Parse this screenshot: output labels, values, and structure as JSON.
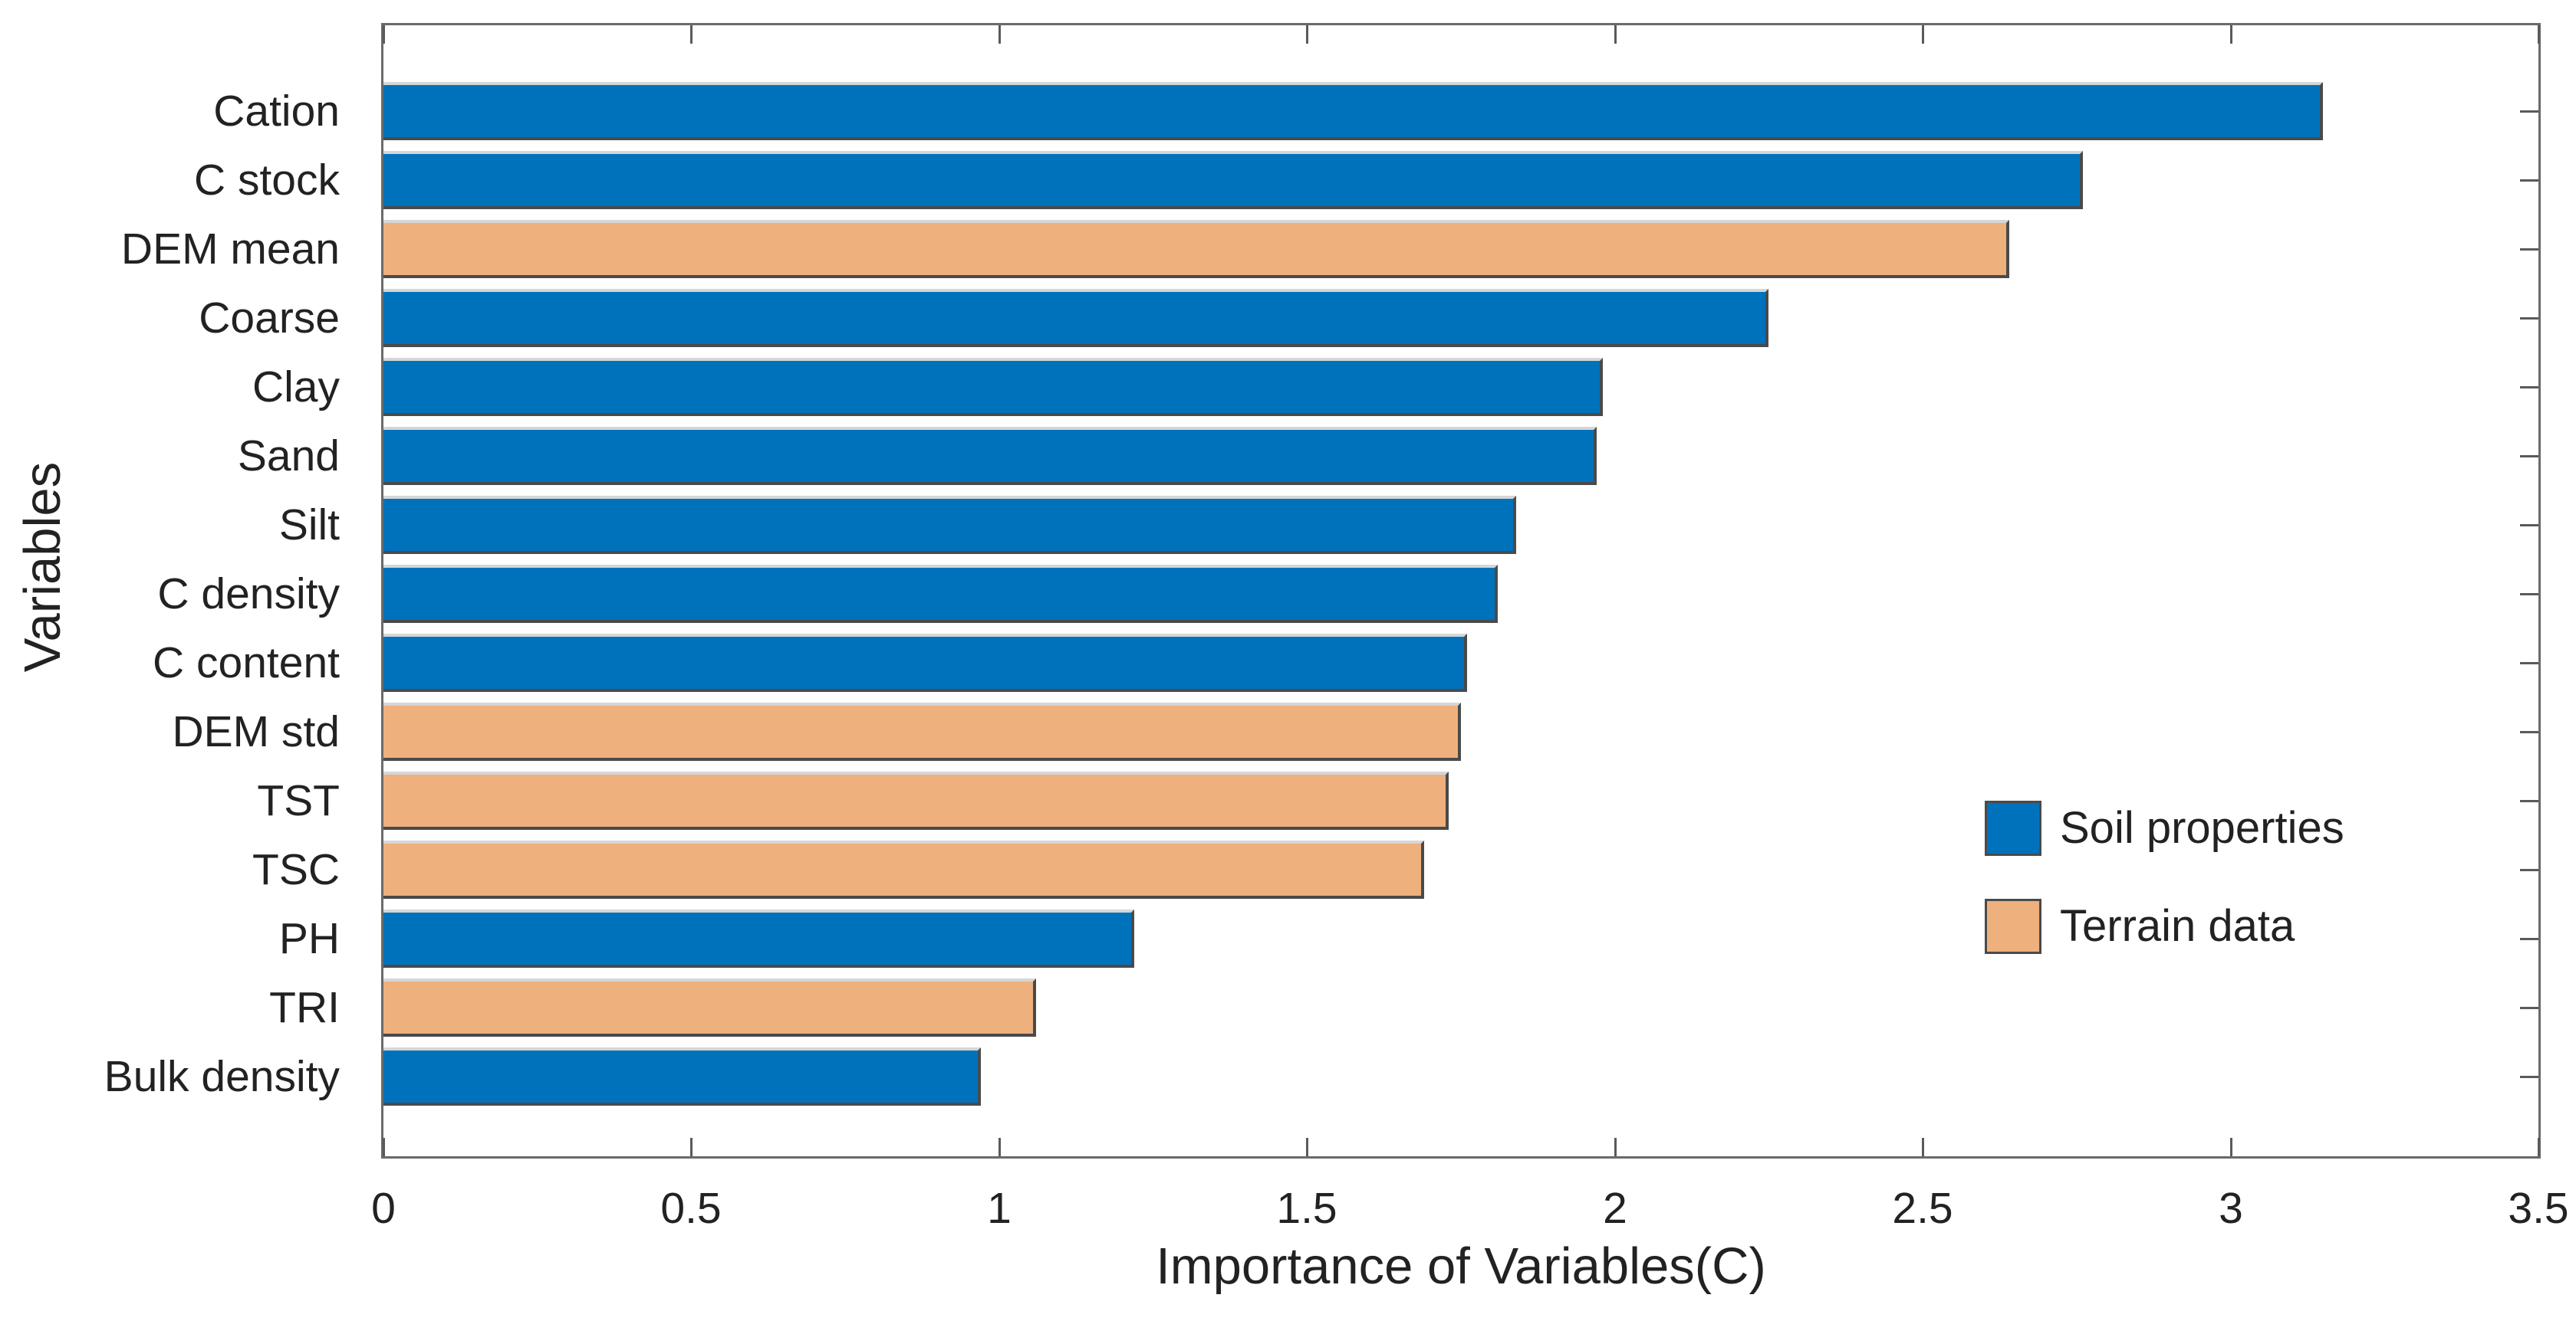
{
  "figure": {
    "background": "#ffffff"
  },
  "chart_data": {
    "type": "bar",
    "orientation": "horizontal",
    "title": "",
    "xlabel": "Importance of Variables(C)",
    "ylabel": "Variables",
    "xlim": [
      0,
      3.5
    ],
    "x_ticks": [
      "0",
      "0.5",
      "1",
      "1.5",
      "2",
      "2.5",
      "3",
      "3.5"
    ],
    "grid": false,
    "legend_position": "inside-right-middle",
    "groups": [
      {
        "name": "Soil properties",
        "color": "#0072BC"
      },
      {
        "name": "Terrain data",
        "color": "#EEB07D"
      }
    ],
    "categories": [
      "Cation",
      "C stock",
      "DEM mean",
      "Coarse",
      "Clay",
      "Sand",
      "Silt",
      "C density",
      "C content",
      "DEM std",
      "TST",
      "TSC",
      "PH",
      "TRI",
      "Bulk density"
    ],
    "values": [
      3.15,
      2.76,
      2.64,
      2.25,
      1.98,
      1.97,
      1.84,
      1.81,
      1.76,
      1.75,
      1.73,
      1.69,
      1.22,
      1.06,
      0.97
    ],
    "bars": [
      {
        "label": "Cation",
        "value": 3.15,
        "group": "Soil properties"
      },
      {
        "label": "C stock",
        "value": 2.76,
        "group": "Soil properties"
      },
      {
        "label": "DEM mean",
        "value": 2.64,
        "group": "Terrain data"
      },
      {
        "label": "Coarse",
        "value": 2.25,
        "group": "Soil properties"
      },
      {
        "label": "Clay",
        "value": 1.98,
        "group": "Soil properties"
      },
      {
        "label": "Sand",
        "value": 1.97,
        "group": "Soil properties"
      },
      {
        "label": "Silt",
        "value": 1.84,
        "group": "Soil properties"
      },
      {
        "label": "C density",
        "value": 1.81,
        "group": "Soil properties"
      },
      {
        "label": "C content",
        "value": 1.76,
        "group": "Soil properties"
      },
      {
        "label": "DEM std",
        "value": 1.75,
        "group": "Terrain data"
      },
      {
        "label": "TST",
        "value": 1.73,
        "group": "Terrain data"
      },
      {
        "label": "TSC",
        "value": 1.69,
        "group": "Terrain data"
      },
      {
        "label": "PH",
        "value": 1.22,
        "group": "Soil properties"
      },
      {
        "label": "TRI",
        "value": 1.06,
        "group": "Terrain data"
      },
      {
        "label": "Bulk density",
        "value": 0.97,
        "group": "Soil properties"
      }
    ]
  },
  "axis_style": {
    "box_color": "#6A6A6A",
    "tick_color": "#5A5A5A",
    "text_color": "#222222",
    "bar_edge_dark": "#4A4A4A",
    "bar_edge_light": "#D6D6D6"
  }
}
